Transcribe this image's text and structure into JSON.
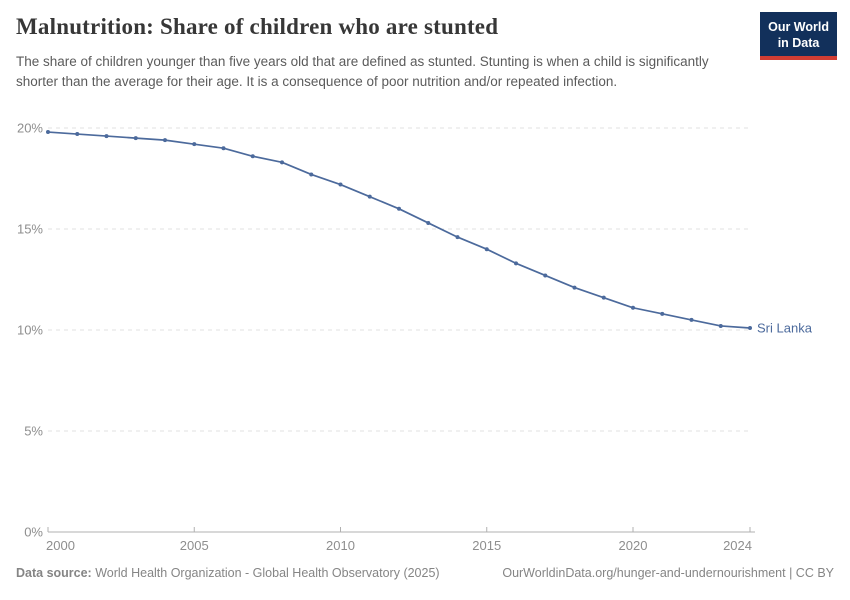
{
  "header": {
    "title": "Malnutrition: Share of children who are stunted",
    "subtitle": "The share of children younger than five years old that are defined as stunted. Stunting is when a child is significantly shorter than the average for their age. It is a consequence of poor nutrition and/or repeated infection."
  },
  "logo": {
    "line1": "Our World",
    "line2": "in Data",
    "bg_color": "#12305B",
    "accent_color": "#D13D33"
  },
  "chart_data": {
    "type": "line",
    "title": "Malnutrition: Share of children who are stunted",
    "xlabel": "",
    "ylabel": "",
    "xlim": [
      2000,
      2024
    ],
    "ylim": [
      0,
      20
    ],
    "grid": "horizontal-dashed",
    "legend_position": "end-of-line-label",
    "x_ticks": [
      2000,
      2005,
      2010,
      2015,
      2020,
      2024
    ],
    "y_ticks": [
      0,
      5,
      10,
      15,
      20
    ],
    "y_tick_suffix": "%",
    "x": [
      2000,
      2001,
      2002,
      2003,
      2004,
      2005,
      2006,
      2007,
      2008,
      2009,
      2010,
      2011,
      2012,
      2013,
      2014,
      2015,
      2016,
      2017,
      2018,
      2019,
      2020,
      2021,
      2022,
      2023,
      2024
    ],
    "series": [
      {
        "name": "Sri Lanka",
        "color": "#4C6A9C",
        "values": [
          19.8,
          19.7,
          19.6,
          19.5,
          19.4,
          19.2,
          19.0,
          18.6,
          18.3,
          17.7,
          17.2,
          16.6,
          16.0,
          15.3,
          14.6,
          14.0,
          13.3,
          12.7,
          12.1,
          11.6,
          11.1,
          10.8,
          10.5,
          10.2,
          10.1
        ]
      }
    ]
  },
  "footer": {
    "datasource_label": "Data source:",
    "datasource_value": " World Health Organization - Global Health Observatory (2025)",
    "attribution": "OurWorldinData.org/hunger-and-undernourishment | CC BY"
  },
  "colors": {
    "line": "#4C6A9C",
    "grid": "#E2E2E2",
    "axis": "#B0B0B0",
    "tick_label": "#8E8E8E",
    "title": "#373737",
    "subtitle": "#5B5B5B",
    "footer": "#858585"
  }
}
